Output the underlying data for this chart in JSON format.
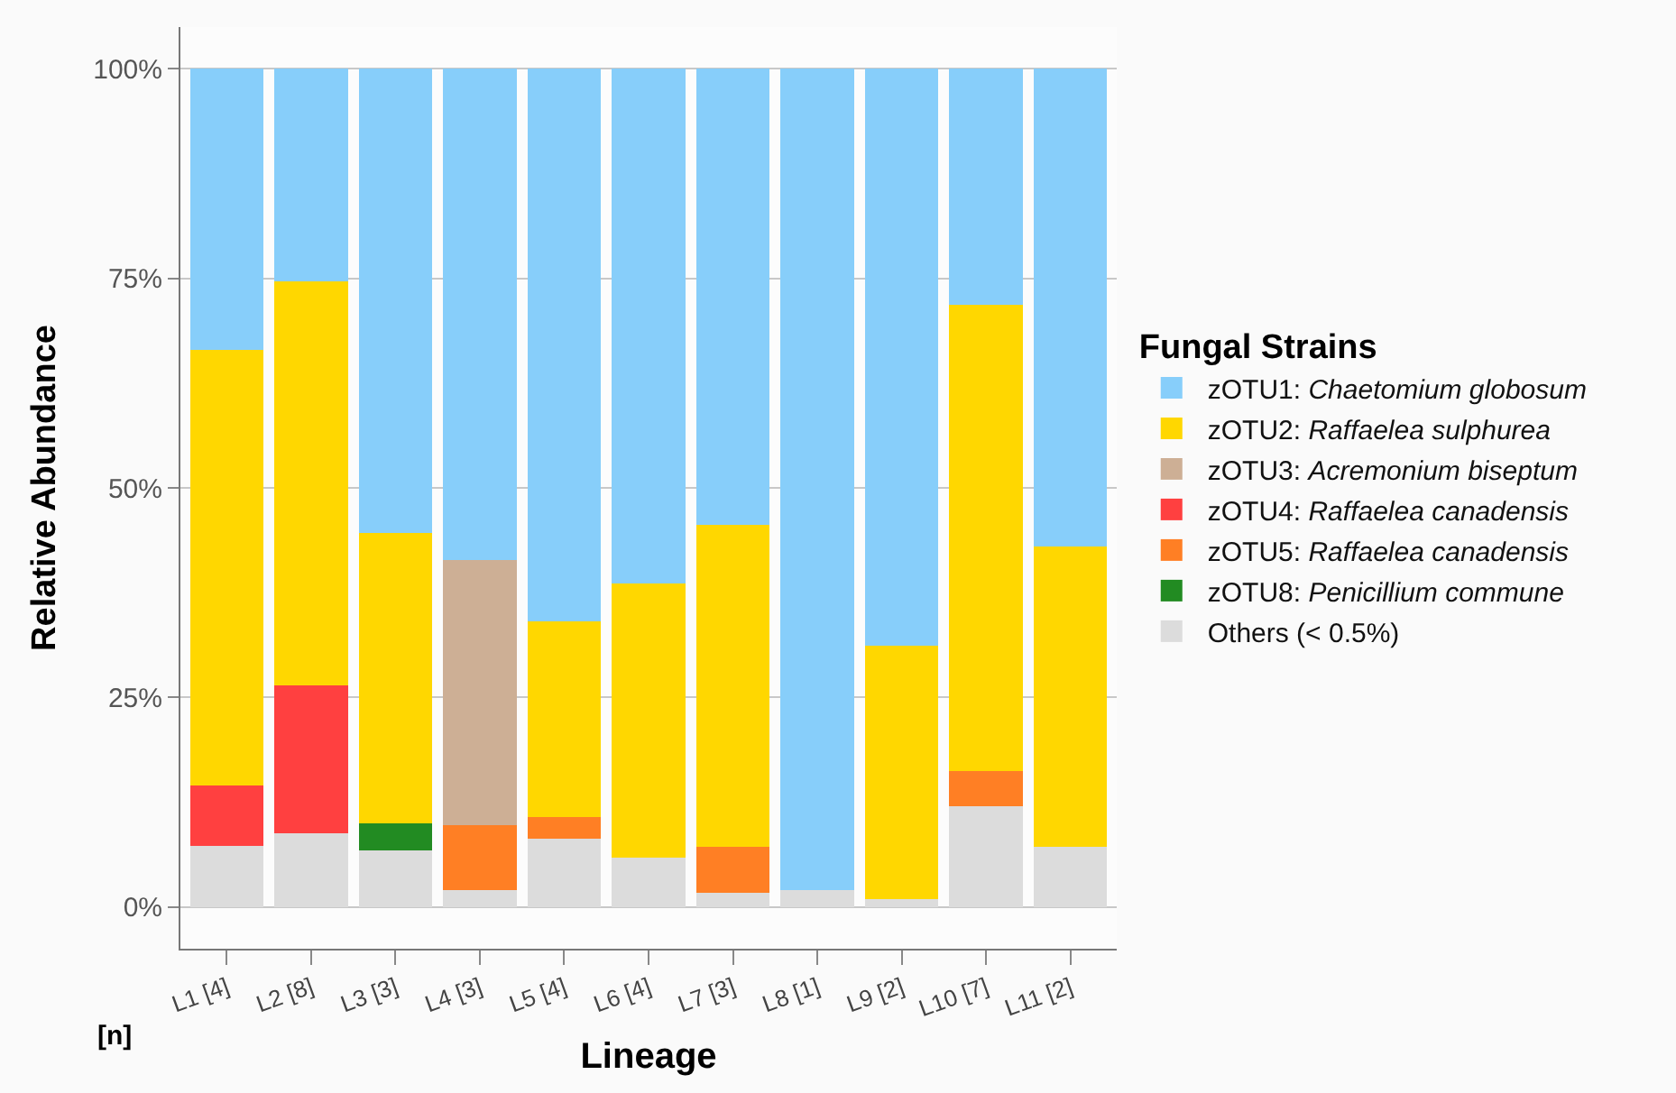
{
  "chart_data": {
    "type": "bar",
    "stacked": true,
    "xlabel": "Lineage",
    "ylabel": "Relative Abundance",
    "legend_title": "Fungal Strains",
    "categories": [
      "L1 [4]",
      "L2 [8]",
      "L3 [3]",
      "L4 [3]",
      "L5 [4]",
      "L6 [4]",
      "L7 [3]",
      "L8 [1]",
      "L9 [2]",
      "L10 [7]",
      "L11 [2]"
    ],
    "series": [
      {
        "name": "Others (< 0.5%)",
        "color": "#dcdcdc",
        "values": [
          7.3,
          8.8,
          6.7,
          2.0,
          8.1,
          5.9,
          1.7,
          2.0,
          0.9,
          12.0,
          7.2
        ]
      },
      {
        "name": "zOTU8: Penicillium commune",
        "color": "#228b22",
        "values": [
          null,
          null,
          3.3,
          null,
          null,
          null,
          null,
          null,
          null,
          null,
          null
        ]
      },
      {
        "name": "zOTU5: Raffaelea canadensis",
        "color": "#ff7f24",
        "values": [
          null,
          null,
          null,
          7.8,
          2.6,
          null,
          5.5,
          null,
          null,
          4.2,
          null
        ]
      },
      {
        "name": "zOTU4: Raffaelea canadensis",
        "color": "#ff4040",
        "values": [
          7.2,
          17.6,
          null,
          null,
          null,
          null,
          null,
          null,
          null,
          null,
          null
        ]
      },
      {
        "name": "zOTU3: Acremonium biseptum",
        "color": "#cdaf95",
        "values": [
          null,
          null,
          null,
          31.6,
          null,
          null,
          null,
          null,
          null,
          null,
          null
        ]
      },
      {
        "name": "zOTU2: Raffaelea sulphurea",
        "color": "#ffd700",
        "values": [
          52.0,
          48.2,
          34.6,
          null,
          23.4,
          32.7,
          38.4,
          null,
          30.3,
          55.7,
          35.8
        ]
      },
      {
        "name": "zOTU1: Chaetomium globosum",
        "color": "#87cefa",
        "values": [
          33.5,
          25.4,
          55.4,
          58.6,
          65.9,
          61.4,
          54.4,
          98.0,
          68.8,
          28.1,
          57.0
        ]
      }
    ],
    "ylim": [
      -5,
      105
    ],
    "yticks": [
      {
        "value": 0,
        "label": "0%"
      },
      {
        "value": 25,
        "label": "25%"
      },
      {
        "value": 50,
        "label": "50%"
      },
      {
        "value": 75,
        "label": "75%"
      },
      {
        "value": 100,
        "label": "100%"
      }
    ],
    "grid": "y",
    "legend": "right",
    "annotations": [
      "[n]"
    ]
  }
}
